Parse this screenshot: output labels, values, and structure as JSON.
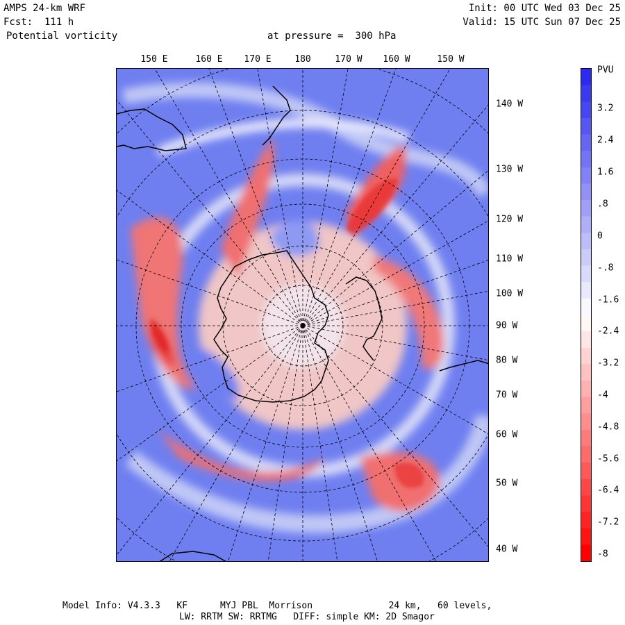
{
  "header": {
    "model": "AMPS 24-km WRF",
    "forecast": "Fcst:  111 h",
    "variable": "Potential vorticity",
    "pressure": "at pressure =  300 hPa",
    "init": "Init: 00 UTC Wed 03 Dec 25",
    "valid": "Valid: 15 UTC Sun 07 Dec 25"
  },
  "map": {
    "projection": "polar stereographic, south pole",
    "top_longitude_labels": [
      "150 E",
      "160 E",
      "170 E",
      "180",
      "170 W",
      "160 W",
      "150 W"
    ],
    "right_longitude_labels": [
      "140 W",
      "130 W",
      "120 W",
      "110 W",
      "100 W",
      "90 W",
      "80 W",
      "70 W",
      "60 W",
      "50 W",
      "40 W"
    ]
  },
  "colorbar": {
    "unit": "PVU",
    "labels": [
      "3.2",
      "2.4",
      "1.6",
      ".8",
      "0",
      "-.8",
      "-1.6",
      "-2.4",
      "-3.2",
      "-4",
      "-4.8",
      "-5.6",
      "-6.4",
      "-7.2",
      "-8"
    ],
    "top_color": "#2a2af0",
    "bottom_color": "#ff0000"
  },
  "footer": {
    "line1": "Model Info: V4.3.3   KF      MYJ PBL  Morrison              24 km,   60 levels,",
    "line2": "LW: RRTM SW: RRTMG   DIFF: simple KM: 2D Smagor"
  }
}
